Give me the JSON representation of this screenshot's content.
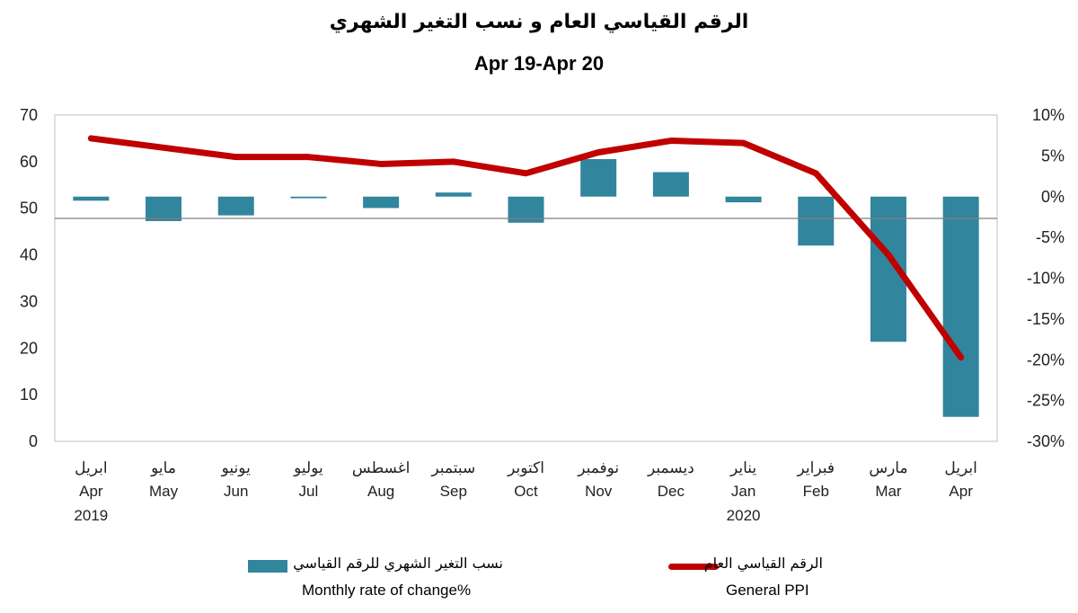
{
  "chart_data": {
    "type": "bar+line",
    "title": "الرقم القياسي العام و نسب التغير الشهري",
    "subtitle": "Apr 19-Apr 20",
    "categories": [
      {
        "ar": "ابريل",
        "en": "Apr",
        "year": "2019"
      },
      {
        "ar": "مايو",
        "en": "May",
        "year": ""
      },
      {
        "ar": "يونيو",
        "en": "Jun",
        "year": ""
      },
      {
        "ar": "يوليو",
        "en": "Jul",
        "year": ""
      },
      {
        "ar": "اغسطس",
        "en": "Aug",
        "year": ""
      },
      {
        "ar": "سبتمبر",
        "en": "Sep",
        "year": ""
      },
      {
        "ar": "اكتوبر",
        "en": "Oct",
        "year": ""
      },
      {
        "ar": "نوفمبر",
        "en": "Nov",
        "year": ""
      },
      {
        "ar": "ديسمبر",
        "en": "Dec",
        "year": ""
      },
      {
        "ar": "يناير",
        "en": "Jan",
        "year": "2020"
      },
      {
        "ar": "فبراير",
        "en": "Feb",
        "year": ""
      },
      {
        "ar": "مارس",
        "en": "Mar",
        "year": ""
      },
      {
        "ar": "ابريل",
        "en": "Apr",
        "year": ""
      }
    ],
    "series": [
      {
        "name_ar": "نسب التغير الشهري للرقم القياسي",
        "name": "Monthly rate of change%",
        "type": "bar",
        "axis": "right",
        "color": "#31859c",
        "values": [
          -0.5,
          -3.0,
          -2.3,
          -0.2,
          -1.4,
          0.5,
          -3.2,
          4.6,
          3.0,
          -0.7,
          -6.0,
          -17.8,
          -27.0
        ]
      },
      {
        "name_ar": "الرقم القياسي العام",
        "name": "General PPI",
        "type": "line",
        "axis": "left",
        "color": "#c00000",
        "values": [
          65.0,
          63.0,
          61.0,
          61.0,
          59.5,
          60.0,
          57.5,
          62.0,
          64.5,
          64.0,
          57.5,
          40.0,
          18.0
        ]
      }
    ],
    "y_left": {
      "ticks": [
        "0",
        "10",
        "20",
        "30",
        "40",
        "50",
        "60",
        "70"
      ],
      "ylim": [
        0,
        70
      ]
    },
    "y_right": {
      "ticks": [
        "10%",
        "5%",
        "0%",
        "-5%",
        "-10%",
        "-15%",
        "-20%",
        "-25%",
        "-30%"
      ],
      "ylim": [
        -30,
        10
      ]
    },
    "grid": false,
    "legend_position": "bottom"
  }
}
